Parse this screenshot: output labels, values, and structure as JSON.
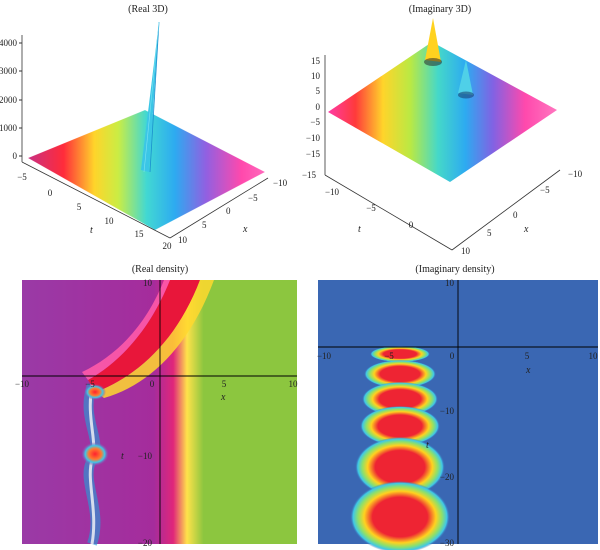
{
  "chart_data": [
    {
      "type": "surface3d",
      "title": "(Real 3D)",
      "xlabel": "x",
      "ylabel": "t",
      "z_ticks": [
        "0",
        "1000",
        "2000",
        "3000",
        "4000"
      ],
      "t_ticks": [
        "−5",
        "0",
        "5",
        "10",
        "15",
        "20"
      ],
      "x_ticks": [
        "−10",
        "−5",
        "0",
        "5",
        "10"
      ],
      "zlim": [
        -300,
        4500
      ],
      "colormap": "rainbow bands",
      "peak_value": 4500
    },
    {
      "type": "surface3d",
      "title": "(Imaginary 3D)",
      "xlabel": "x",
      "ylabel": "t",
      "z_ticks": [
        "15",
        "10",
        "5",
        "0",
        "−5",
        "−10",
        "−15"
      ],
      "t_ticks": [
        "−15",
        "−10",
        "−5",
        "0"
      ],
      "x_ticks": [
        "−10",
        "−5",
        "0",
        "5",
        "10"
      ],
      "zlim": [
        -15,
        17
      ],
      "colormap": "rainbow bands"
    },
    {
      "type": "heatmap",
      "title": "(Real density)",
      "xlabel": "x",
      "ylabel": "t",
      "x_ticks": [
        "−10",
        "−5",
        "0",
        "5",
        "10"
      ],
      "y_ticks": [
        "10",
        "0",
        "−10",
        "−20"
      ],
      "xlim": [
        -10,
        10
      ],
      "ylim": [
        -20,
        10
      ],
      "colors": {
        "left": "#9a3aa6",
        "right": "#8cc63f",
        "front": "#e8163a"
      }
    },
    {
      "type": "heatmap",
      "title": "(Imaginary density)",
      "xlabel": "x",
      "ylabel": "t",
      "x_ticks": [
        "−10",
        "−5",
        "0",
        "5",
        "10"
      ],
      "y_ticks": [
        "10",
        "0",
        "−10",
        "−20",
        "−30"
      ],
      "xlim": [
        -10,
        10
      ],
      "ylim": [
        -30,
        10
      ],
      "colors": {
        "background": "#3a67b3",
        "blob": "#ee2433"
      }
    }
  ]
}
